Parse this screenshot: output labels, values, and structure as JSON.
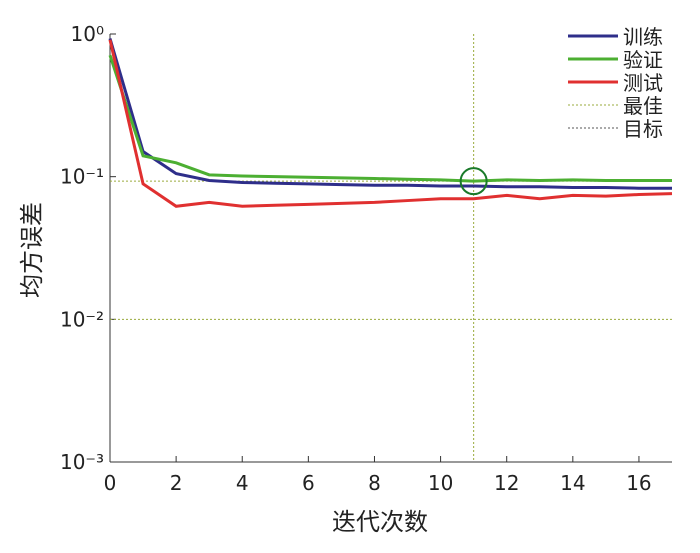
{
  "chart_data": {
    "type": "line",
    "log_y": true,
    "xlabel": "迭代次数",
    "ylabel": "均方误差",
    "x": [
      0,
      1,
      2,
      3,
      4,
      5,
      6,
      7,
      8,
      9,
      10,
      11,
      12,
      13,
      14,
      15,
      16,
      17
    ],
    "xlim": [
      0,
      17
    ],
    "xticks": [
      0,
      2,
      4,
      6,
      8,
      10,
      12,
      14,
      16
    ],
    "ylim": [
      0.001,
      1
    ],
    "yticks": [
      {
        "value": 0.001,
        "label": "10⁻³"
      },
      {
        "value": 0.01,
        "label": "10⁻²"
      },
      {
        "value": 0.1,
        "label": "10⁻¹"
      },
      {
        "value": 1,
        "label": "10⁰"
      }
    ],
    "series": [
      {
        "name": "训练",
        "color": "#2e2e8a",
        "values": [
          0.93,
          0.15,
          0.105,
          0.094,
          0.091,
          0.09,
          0.089,
          0.088,
          0.087,
          0.087,
          0.086,
          0.086,
          0.085,
          0.085,
          0.084,
          0.084,
          0.083,
          0.083
        ]
      },
      {
        "name": "验证",
        "color": "#4caf32",
        "values": [
          0.71,
          0.14,
          0.125,
          0.103,
          0.101,
          0.1,
          0.099,
          0.098,
          0.097,
          0.096,
          0.095,
          0.093,
          0.095,
          0.094,
          0.095,
          0.094,
          0.094,
          0.094
        ]
      },
      {
        "name": "测试",
        "color": "#e03030",
        "values": [
          0.91,
          0.089,
          0.062,
          0.066,
          0.062,
          0.063,
          0.064,
          0.065,
          0.066,
          0.068,
          0.07,
          0.07,
          0.074,
          0.07,
          0.074,
          0.073,
          0.075,
          0.076
        ]
      }
    ],
    "best": {
      "name": "最佳",
      "color": "#9aab3c",
      "x": 11,
      "y": 0.093,
      "marker_color": "#1a7a2a"
    },
    "goal": {
      "name": "目标",
      "color": "#555555",
      "y": 0.01
    }
  }
}
